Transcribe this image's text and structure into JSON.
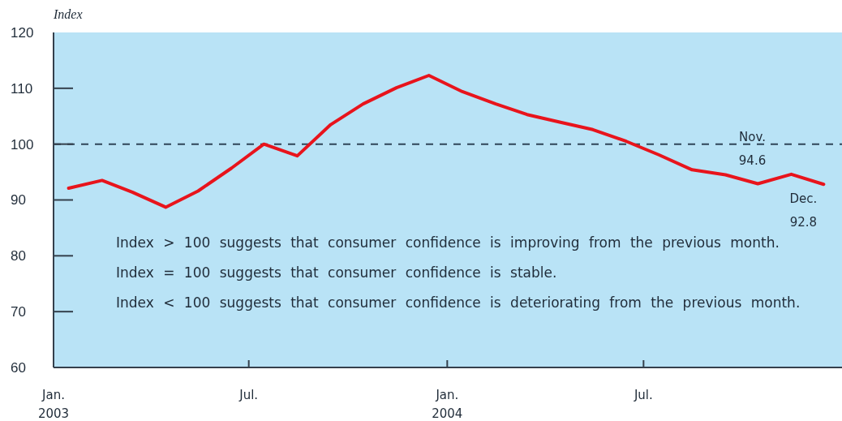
{
  "chart_data": {
    "type": "line",
    "ylabel": "Index",
    "x": [
      "2003-01-15",
      "2003-02-15",
      "2003-03-15",
      "2003-04-15",
      "2003-05-15",
      "2003-06-15",
      "2003-07-15",
      "2003-08-15",
      "2003-09-15",
      "2003-10-15",
      "2003-11-15",
      "2003-12-15",
      "2004-01-15",
      "2004-02-15",
      "2004-03-15",
      "2004-04-15",
      "2004-05-15",
      "2004-06-15",
      "2004-07-15",
      "2004-08-15",
      "2004-09-15",
      "2004-10-15",
      "2004-11-15",
      "2004-12-15"
    ],
    "series": [
      {
        "color": "#e8141c",
        "values": [
          92.1,
          93.5,
          91.4,
          88.7,
          91.6,
          95.7,
          100.0,
          97.9,
          103.5,
          107.2,
          110.1,
          112.3,
          109.4,
          107.2,
          105.3,
          103.9,
          102.6,
          100.5,
          98.1,
          95.4,
          94.5,
          92.9,
          94.6,
          92.8
        ]
      }
    ],
    "xlim": [
      "2003-01-01",
      "2005-01-01"
    ],
    "xticks": [
      {
        "value": "2003-01-01",
        "label": "Jan.\n2003"
      },
      {
        "value": "2003-07-01",
        "label": "Jul."
      },
      {
        "value": "2004-01-01",
        "label": "Jan.\n2004"
      },
      {
        "value": "2004-07-01",
        "label": "Jul."
      }
    ],
    "ylim": [
      60,
      120
    ],
    "yticks": [
      60,
      70,
      80,
      90,
      100,
      110,
      120
    ],
    "ref_lines": [
      {
        "axis": "y",
        "value": 100,
        "color": "#2f4558",
        "line_style": "dashed"
      }
    ],
    "annotations": [
      "Index > 100 suggests that consumer confidence is improving from the previous month.",
      "Index = 100 suggests that consumer confidence is stable.",
      "Index < 100 suggests that consumer confidence is deteriorating from the previous month.",
      {
        "text": "Nov.\n94.6",
        "x": "2004-11-15",
        "y": 94.6
      },
      {
        "text": "Dec.\n92.8",
        "x": "2004-12-15",
        "y": 92.8
      }
    ]
  }
}
